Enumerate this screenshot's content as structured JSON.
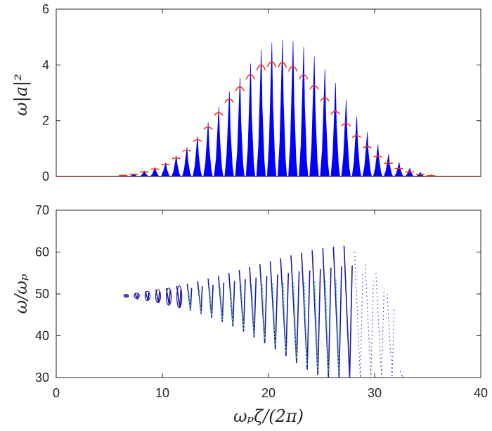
{
  "chart_data": [
    {
      "type": "area",
      "ylabel": "ω|a|²",
      "xlabel": "",
      "xlim": [
        0,
        40
      ],
      "ylim": [
        0,
        6
      ],
      "x_ticks": [
        "0",
        "10",
        "20",
        "30",
        "40"
      ],
      "y_ticks": [
        "0",
        "2",
        "4",
        "6"
      ],
      "grid": false,
      "colors": {
        "fill": "#0000ff",
        "envelope": "#ff3300"
      },
      "series": [
        {
          "x": [
            6.3,
            7.3,
            8.3,
            9.3,
            10.3,
            11.3,
            12.3,
            13.3,
            14.3,
            15.3,
            16.3,
            17.3,
            18.3,
            19.3,
            20.3,
            21.3,
            22.3,
            23.3,
            24.3,
            25.3,
            26.3,
            27.3,
            28.3,
            29.3,
            30.3,
            31.3,
            32.3,
            33.3,
            34.3,
            35.3
          ],
          "values": [
            0.05,
            0.1,
            0.2,
            0.33,
            0.5,
            0.75,
            1.05,
            1.45,
            1.95,
            2.5,
            3.05,
            3.55,
            4.05,
            4.55,
            4.8,
            4.9,
            4.85,
            4.65,
            4.3,
            3.85,
            3.35,
            2.75,
            2.15,
            1.6,
            1.15,
            0.8,
            0.5,
            0.3,
            0.15,
            0.06
          ]
        },
        {
          "x": [
            6.3,
            7.3,
            8.3,
            9.3,
            10.3,
            11.3,
            12.3,
            13.3,
            14.3,
            15.3,
            16.3,
            17.3,
            18.3,
            19.3,
            20.3,
            21.3,
            22.3,
            23.3,
            24.3,
            25.3,
            26.3,
            27.3,
            28.3,
            29.3,
            30.3,
            31.3,
            32.3,
            33.3,
            34.3,
            35.3
          ],
          "values": [
            0.04,
            0.08,
            0.17,
            0.28,
            0.45,
            0.68,
            0.97,
            1.35,
            1.82,
            2.35,
            2.85,
            3.3,
            3.75,
            4.1,
            4.22,
            4.2,
            4.05,
            3.75,
            3.35,
            2.9,
            2.4,
            1.95,
            1.5,
            1.1,
            0.75,
            0.5,
            0.3,
            0.17,
            0.08,
            0.03
          ]
        }
      ]
    },
    {
      "type": "scatter",
      "ylabel": "ω/ωₚ",
      "xlabel": "ωₚζ/(2π)",
      "xlim": [
        0,
        40
      ],
      "ylim": [
        30,
        70
      ],
      "x_ticks": [
        "0",
        "10",
        "20",
        "30",
        "40"
      ],
      "y_ticks": [
        "30",
        "40",
        "50",
        "60",
        "70"
      ],
      "grid": false,
      "colors": {
        "outer": "#1a1aa6",
        "inner": "#2ec4b6",
        "core": "#e6d21e"
      },
      "oscillation": {
        "x_center": [
          6.6,
          7.6,
          8.6,
          9.6,
          10.6,
          11.6,
          12.6,
          13.6,
          14.6,
          15.6,
          16.6,
          17.6,
          18.6,
          19.6,
          20.6,
          21.6,
          22.6,
          23.6,
          24.6,
          25.6,
          26.6,
          27.6,
          28.6,
          29.6,
          30.6,
          31.6,
          32.6
        ],
        "y_max": [
          49.8,
          50.2,
          50.6,
          51.0,
          51.4,
          51.9,
          52.4,
          53.0,
          53.6,
          54.3,
          55.0,
          55.7,
          56.4,
          57.1,
          57.8,
          58.5,
          59.2,
          59.8,
          60.4,
          60.9,
          61.3,
          61.5,
          60.0,
          57.0,
          55.0,
          50.0,
          31.5
        ],
        "y_min": [
          49.3,
          48.9,
          48.4,
          47.9,
          47.3,
          46.7,
          46.0,
          45.2,
          44.3,
          43.3,
          42.2,
          41.0,
          39.6,
          38.2,
          36.7,
          35.1,
          33.5,
          31.9,
          30.6,
          30.0,
          30.0,
          30.0,
          30.0,
          30.0,
          30.0,
          30.0,
          30.0
        ]
      }
    }
  ]
}
